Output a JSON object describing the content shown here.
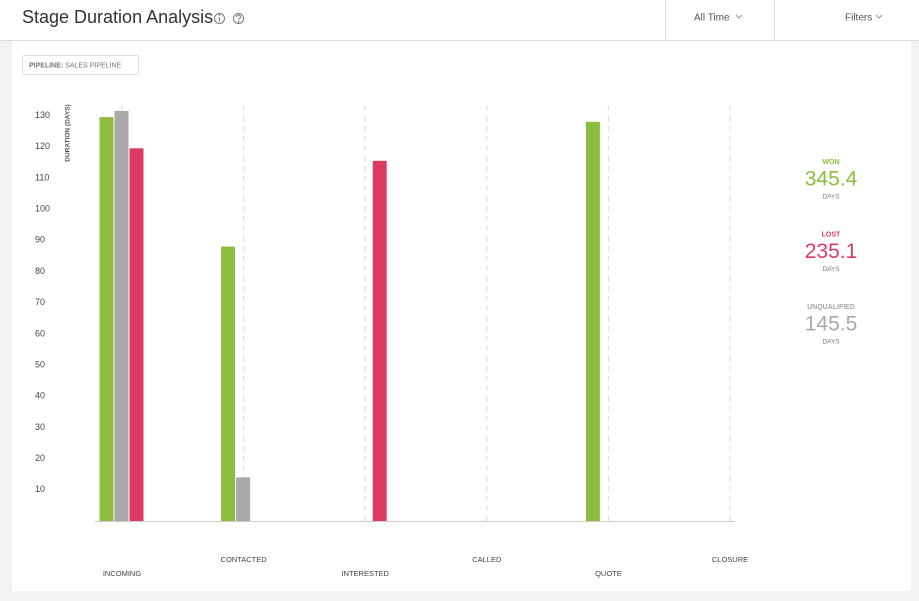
{
  "header": {
    "title": "Stage Duration Analysis",
    "range": "All Time",
    "filters": "Filters"
  },
  "pipeline": {
    "label": "PIPELINE:",
    "value": "SALES PIPELINE"
  },
  "chart_data": {
    "type": "bar",
    "y_label": "DURATION (DAYS)",
    "categories": [
      "INCOMING",
      "CONTACTED",
      "INTERESTED",
      "CALLED",
      "QUOTE",
      "CLOSURE"
    ],
    "series": [
      {
        "name": "WON",
        "color": "#8dbd3e",
        "values": [
          129.5,
          88,
          null,
          null,
          128,
          null
        ],
        "total": 345.4,
        "unit": "DAYS"
      },
      {
        "name": "UNQUALIFIED",
        "color": "#a9a9a9",
        "values": [
          131.5,
          14,
          null,
          null,
          null,
          null
        ],
        "total": 145.5,
        "unit": "DAYS"
      },
      {
        "name": "LOST",
        "color": "#dc3a62",
        "values": [
          119.5,
          null,
          115.5,
          null,
          null,
          null
        ],
        "total": 235.1,
        "unit": "DAYS"
      }
    ],
    "summary_order": [
      0,
      2,
      1
    ],
    "ylim": [
      0,
      135
    ],
    "yticks": [
      10,
      20,
      30,
      40,
      50,
      60,
      70,
      80,
      90,
      100,
      110,
      120,
      130
    ],
    "grid": false
  }
}
